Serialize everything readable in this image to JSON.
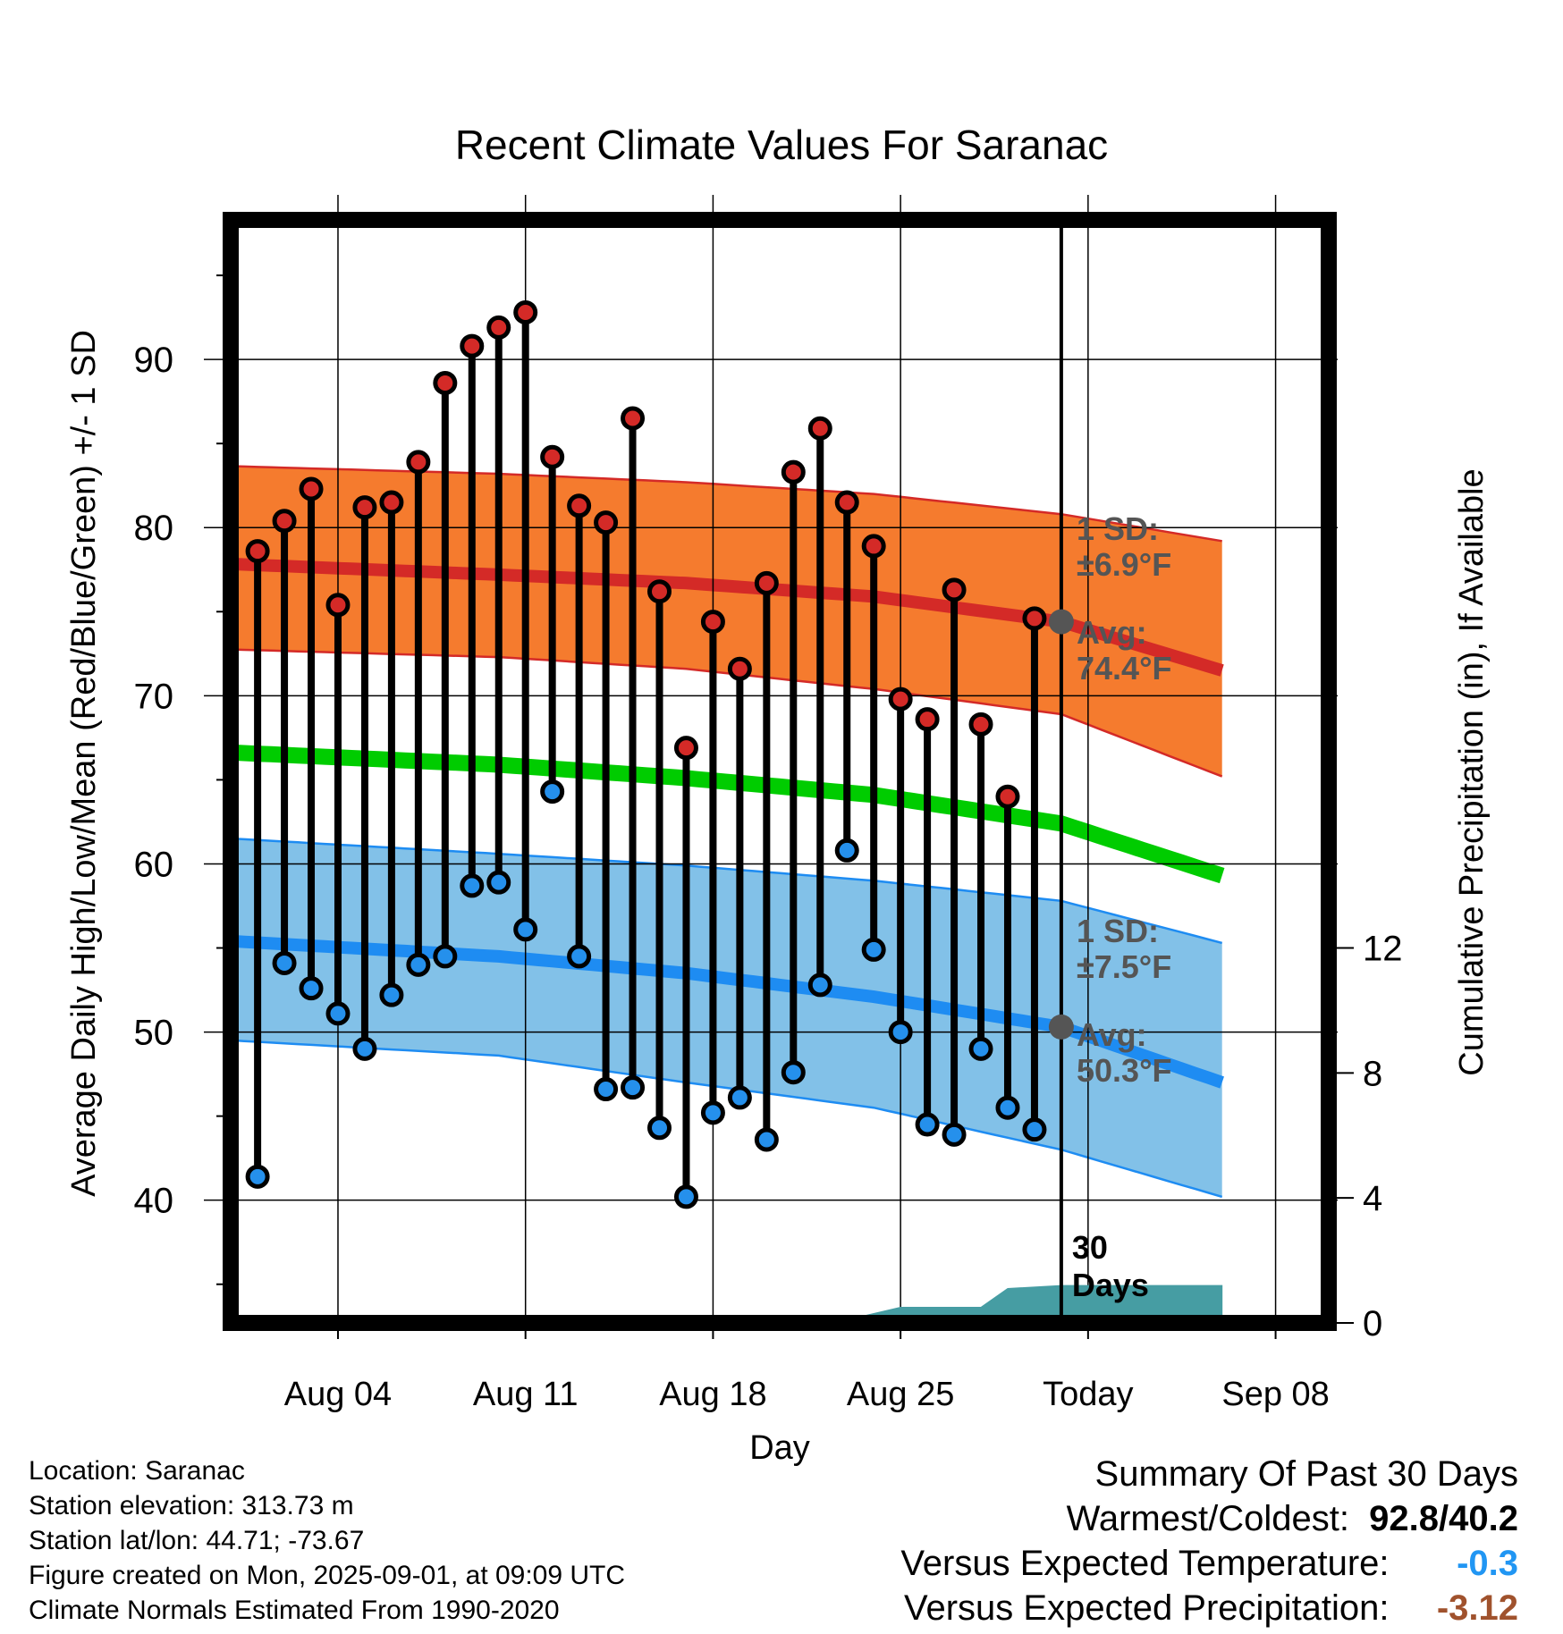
{
  "chart_data": {
    "type": "line",
    "title": "Recent Climate Values For Saranac",
    "xlabel": "Day",
    "ylabel": "Average Daily High/Low/Mean (Red/Blue/Green) +/- 1 SD",
    "y2label": "Cumulative Precipitation (in), If Available",
    "x_tick_labels": [
      "Aug 04",
      "Aug 11",
      "Aug 18",
      "Aug 25",
      "Today",
      "Sep 08"
    ],
    "y_ticks": [
      40,
      50,
      60,
      70,
      80,
      90
    ],
    "y2_ticks": [
      0,
      4,
      8,
      12
    ],
    "ylim": [
      32.7,
      98.3
    ],
    "y2lim": [
      0,
      35.3
    ],
    "grid": true,
    "today_day_index": 31,
    "today_annotation": [
      "30",
      "Days"
    ],
    "colors": {
      "high": "#d42a27",
      "high_band": "#f57b2e",
      "low": "#1e8cf2",
      "low_band": "#82c1e8",
      "mean": "#00cc00",
      "precip": "#469da3",
      "high_marker": "#d42a27",
      "low_marker": "#2590ec",
      "today_marker": "#555555",
      "temp_anomaly": "#2196f3",
      "precip_anomaly": "#a0522d"
    },
    "days": [
      1,
      2,
      3,
      4,
      5,
      6,
      7,
      8,
      9,
      10,
      11,
      12,
      13,
      14,
      15,
      16,
      17,
      18,
      19,
      20,
      21,
      22,
      23,
      24,
      25,
      26,
      27,
      28,
      29,
      30
    ],
    "daily_high": [
      78.6,
      80.4,
      82.3,
      75.4,
      81.2,
      81.5,
      83.9,
      88.6,
      90.8,
      91.9,
      92.8,
      84.2,
      81.3,
      80.3,
      86.5,
      76.2,
      66.9,
      74.4,
      71.6,
      76.7,
      83.3,
      85.9,
      81.5,
      78.9,
      69.8,
      68.6,
      76.3,
      68.3,
      64.0,
      74.6
    ],
    "daily_low": [
      41.4,
      54.1,
      52.6,
      51.1,
      49.0,
      52.2,
      54.0,
      54.5,
      58.7,
      58.9,
      56.1,
      64.3,
      54.5,
      46.6,
      46.7,
      44.3,
      40.2,
      45.2,
      46.1,
      43.6,
      47.6,
      52.8,
      60.8,
      54.9,
      50.0,
      44.5,
      43.9,
      49.0,
      45.5,
      44.2
    ],
    "normals": {
      "day": [
        -1,
        10,
        17,
        24,
        31,
        37
      ],
      "high": [
        77.9,
        77.2,
        76.7,
        75.9,
        74.4,
        71.5
      ],
      "high_sd_upper": [
        83.7,
        83.2,
        82.7,
        82.0,
        80.8,
        79.2
      ],
      "high_sd_lower": [
        72.8,
        72.3,
        71.6,
        70.4,
        68.9,
        65.2
      ],
      "mean": [
        66.7,
        65.9,
        65.1,
        64.1,
        62.4,
        59.3
      ],
      "low": [
        55.5,
        54.5,
        53.5,
        52.1,
        50.3,
        47.0
      ],
      "low_sd_upper": [
        61.6,
        60.6,
        59.9,
        59.0,
        57.8,
        55.3
      ],
      "low_sd_lower": [
        49.6,
        48.6,
        47.0,
        45.5,
        43.0,
        40.2
      ]
    },
    "precip_cumulative": {
      "day": [
        15.7,
        16,
        23,
        24,
        25,
        28,
        29,
        31,
        37
      ],
      "value": [
        0,
        0.1,
        0.1,
        0.3,
        0.5,
        0.5,
        1.1,
        1.2,
        1.2
      ]
    },
    "annotations": {
      "high_sd": [
        "1 SD:",
        "±6.9°F"
      ],
      "high_avg": [
        "Avg:",
        "74.4°F"
      ],
      "low_sd": [
        "1 SD:",
        "±7.5°F"
      ],
      "low_avg": [
        "Avg:",
        "50.3°F"
      ],
      "high_avg_value": 74.4,
      "low_avg_value": 50.3
    }
  },
  "info": {
    "location": "Location: Saranac",
    "elevation": "Station elevation: 313.73 m",
    "latlon": "Station lat/lon: 44.71; -73.67",
    "created": "Figure created on Mon, 2025-09-01, at 09:09 UTC",
    "normals": "Climate Normals Estimated From 1990-2020"
  },
  "summary": {
    "title": "Summary Of Past 30 Days",
    "warmest_coldest_label": "Warmest/Coldest:",
    "warmest_coldest_value": "92.8/40.2",
    "temp_label": "Versus Expected Temperature:",
    "temp_value": "-0.3",
    "precip_label": "Versus Expected Precipitation:",
    "precip_value": "-3.12"
  }
}
